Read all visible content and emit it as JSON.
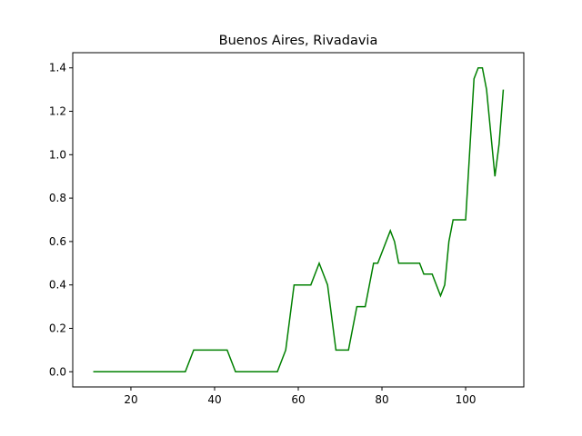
{
  "chart_data": {
    "type": "line",
    "title": "Buenos Aires, Rivadavia",
    "x": [
      11,
      33,
      35,
      43,
      45,
      55,
      57,
      59,
      63,
      65,
      67,
      69,
      72,
      74,
      76,
      78,
      79,
      82,
      83,
      84,
      89,
      90,
      92,
      94,
      95,
      96,
      97,
      100,
      102,
      103,
      104,
      105,
      107,
      108,
      109
    ],
    "series": [
      {
        "color": "#008000",
        "values": [
          0,
          0,
          0.1,
          0.1,
          0,
          0,
          0.1,
          0.4,
          0.4,
          0.5,
          0.4,
          0.1,
          0.1,
          0.3,
          0.3,
          0.5,
          0.5,
          0.65,
          0.6,
          0.5,
          0.5,
          0.45,
          0.45,
          0.35,
          0.4,
          0.6,
          0.7,
          0.7,
          1.35,
          1.4,
          1.4,
          1.3,
          0.9,
          1.05,
          1.3
        ]
      }
    ],
    "xlim": [
      6.1,
      113.9
    ],
    "ylim": [
      -0.07,
      1.47
    ],
    "xticks": [
      20,
      40,
      60,
      80,
      100
    ],
    "yticks": [
      {
        "value": 0,
        "label": "0.0"
      },
      {
        "value": 0.2,
        "label": "0.2"
      },
      {
        "value": 0.4,
        "label": "0.4"
      },
      {
        "value": 0.6,
        "label": "0.6"
      },
      {
        "value": 0.8,
        "label": "0.8"
      },
      {
        "value": 1.0,
        "label": "1.0"
      },
      {
        "value": 1.2,
        "label": "1.2"
      },
      {
        "value": 1.4,
        "label": "1.4"
      }
    ]
  }
}
